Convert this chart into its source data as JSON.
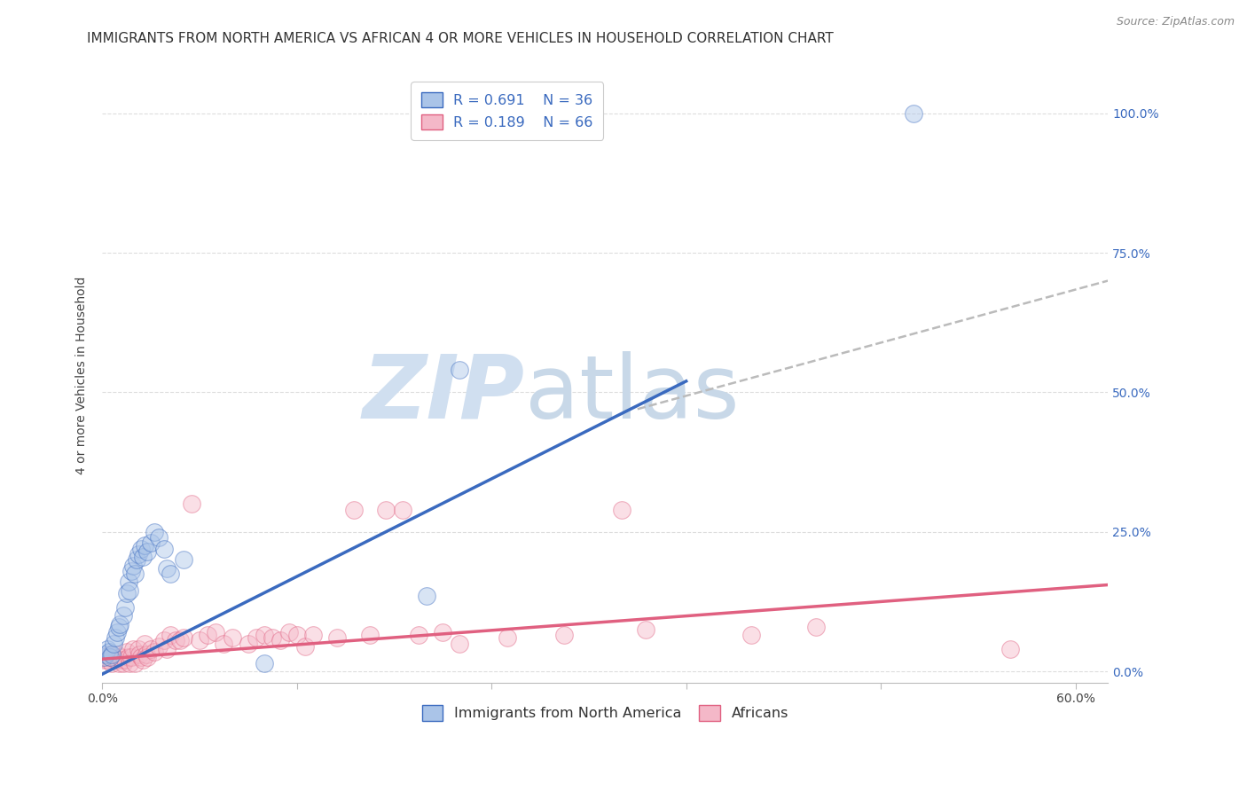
{
  "title": "IMMIGRANTS FROM NORTH AMERICA VS AFRICAN 4 OR MORE VEHICLES IN HOUSEHOLD CORRELATION CHART",
  "source": "Source: ZipAtlas.com",
  "ylabel": "4 or more Vehicles in Household",
  "ytick_labels": [
    "0.0%",
    "25.0%",
    "50.0%",
    "75.0%",
    "100.0%"
  ],
  "ytick_values": [
    0.0,
    0.25,
    0.5,
    0.75,
    1.0
  ],
  "xlim": [
    0.0,
    0.62
  ],
  "ylim": [
    -0.02,
    1.08
  ],
  "blue_color": "#aac4e8",
  "blue_color_line": "#3a6abf",
  "pink_color": "#f4b8c8",
  "pink_color_line": "#e06080",
  "dashed_color": "#BBBBBB",
  "watermark_zip": "ZIP",
  "watermark_atlas": "atlas",
  "watermark_color_zip": "#d0dff0",
  "watermark_color_atlas": "#c8d8e8",
  "legend_label_blue": "Immigrants from North America",
  "legend_label_pink": "Africans",
  "blue_R": "0.691",
  "blue_N": "36",
  "pink_R": "0.189",
  "pink_N": "66",
  "blue_line_x0": 0.0,
  "blue_line_x1": 0.36,
  "blue_line_y0": -0.005,
  "blue_line_y1": 0.52,
  "pink_line_x0": 0.0,
  "pink_line_x1": 0.62,
  "pink_line_y0": 0.022,
  "pink_line_y1": 0.155,
  "dashed_line_x0": 0.33,
  "dashed_line_x1": 0.62,
  "dashed_line_y0": 0.47,
  "dashed_line_y1": 0.7,
  "grid_color": "#DDDDDD",
  "title_fontsize": 11,
  "axis_label_fontsize": 10,
  "tick_fontsize": 10,
  "legend_fontsize": 11.5,
  "point_size": 200,
  "point_alpha": 0.45,
  "blue_points": [
    [
      0.001,
      0.025
    ],
    [
      0.002,
      0.03
    ],
    [
      0.003,
      0.04
    ],
    [
      0.004,
      0.035
    ],
    [
      0.005,
      0.025
    ],
    [
      0.006,
      0.03
    ],
    [
      0.007,
      0.05
    ],
    [
      0.008,
      0.06
    ],
    [
      0.009,
      0.07
    ],
    [
      0.01,
      0.08
    ],
    [
      0.011,
      0.085
    ],
    [
      0.013,
      0.1
    ],
    [
      0.014,
      0.115
    ],
    [
      0.015,
      0.14
    ],
    [
      0.016,
      0.16
    ],
    [
      0.017,
      0.145
    ],
    [
      0.018,
      0.18
    ],
    [
      0.019,
      0.19
    ],
    [
      0.02,
      0.175
    ],
    [
      0.021,
      0.2
    ],
    [
      0.022,
      0.21
    ],
    [
      0.024,
      0.22
    ],
    [
      0.025,
      0.205
    ],
    [
      0.026,
      0.225
    ],
    [
      0.028,
      0.215
    ],
    [
      0.03,
      0.23
    ],
    [
      0.032,
      0.25
    ],
    [
      0.035,
      0.24
    ],
    [
      0.038,
      0.22
    ],
    [
      0.04,
      0.185
    ],
    [
      0.042,
      0.175
    ],
    [
      0.05,
      0.2
    ],
    [
      0.1,
      0.015
    ],
    [
      0.2,
      0.135
    ],
    [
      0.22,
      0.54
    ],
    [
      0.5,
      1.0
    ]
  ],
  "pink_points": [
    [
      0.001,
      0.02
    ],
    [
      0.002,
      0.025
    ],
    [
      0.003,
      0.02
    ],
    [
      0.004,
      0.03
    ],
    [
      0.005,
      0.025
    ],
    [
      0.006,
      0.015
    ],
    [
      0.007,
      0.025
    ],
    [
      0.008,
      0.02
    ],
    [
      0.009,
      0.03
    ],
    [
      0.01,
      0.015
    ],
    [
      0.011,
      0.025
    ],
    [
      0.012,
      0.02
    ],
    [
      0.013,
      0.015
    ],
    [
      0.014,
      0.02
    ],
    [
      0.015,
      0.035
    ],
    [
      0.016,
      0.025
    ],
    [
      0.017,
      0.015
    ],
    [
      0.018,
      0.025
    ],
    [
      0.019,
      0.04
    ],
    [
      0.02,
      0.015
    ],
    [
      0.022,
      0.04
    ],
    [
      0.023,
      0.03
    ],
    [
      0.024,
      0.025
    ],
    [
      0.025,
      0.02
    ],
    [
      0.026,
      0.05
    ],
    [
      0.027,
      0.03
    ],
    [
      0.028,
      0.025
    ],
    [
      0.03,
      0.04
    ],
    [
      0.032,
      0.035
    ],
    [
      0.035,
      0.045
    ],
    [
      0.038,
      0.055
    ],
    [
      0.04,
      0.04
    ],
    [
      0.042,
      0.065
    ],
    [
      0.045,
      0.055
    ],
    [
      0.048,
      0.055
    ],
    [
      0.05,
      0.06
    ],
    [
      0.055,
      0.3
    ],
    [
      0.06,
      0.055
    ],
    [
      0.065,
      0.065
    ],
    [
      0.07,
      0.07
    ],
    [
      0.075,
      0.05
    ],
    [
      0.08,
      0.06
    ],
    [
      0.09,
      0.05
    ],
    [
      0.095,
      0.06
    ],
    [
      0.1,
      0.065
    ],
    [
      0.105,
      0.06
    ],
    [
      0.11,
      0.055
    ],
    [
      0.115,
      0.07
    ],
    [
      0.12,
      0.065
    ],
    [
      0.125,
      0.045
    ],
    [
      0.13,
      0.065
    ],
    [
      0.145,
      0.06
    ],
    [
      0.155,
      0.29
    ],
    [
      0.165,
      0.065
    ],
    [
      0.175,
      0.29
    ],
    [
      0.185,
      0.29
    ],
    [
      0.195,
      0.065
    ],
    [
      0.21,
      0.07
    ],
    [
      0.22,
      0.05
    ],
    [
      0.25,
      0.06
    ],
    [
      0.285,
      0.065
    ],
    [
      0.32,
      0.29
    ],
    [
      0.335,
      0.075
    ],
    [
      0.4,
      0.065
    ],
    [
      0.44,
      0.08
    ],
    [
      0.56,
      0.04
    ]
  ]
}
